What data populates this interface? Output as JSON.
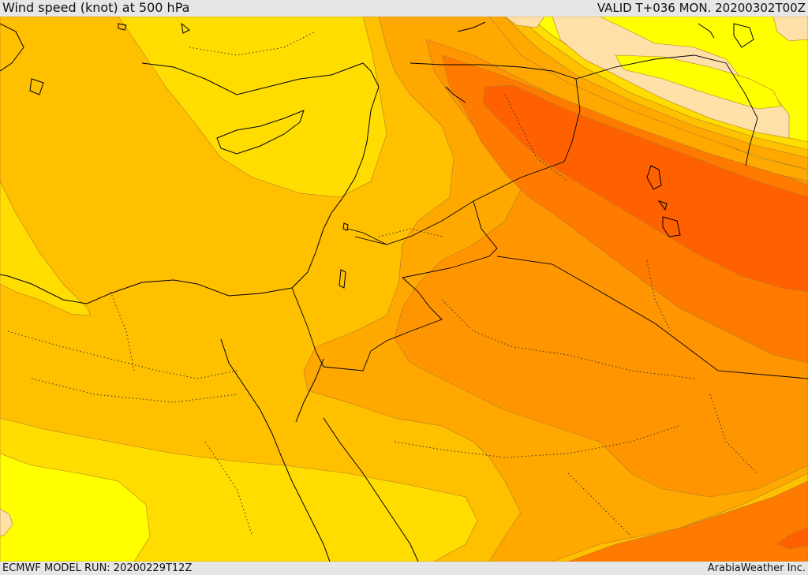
{
  "header": {
    "title": "Wind speed (knot) at 500 hPa",
    "valid": "VALID T+036 MON. 20200302T00Z"
  },
  "footer": {
    "model_run": "ECMWF MODEL RUN: 20200229T12Z",
    "credit": "ArabiaWeather Inc."
  },
  "colors": {
    "level_pale": "#ffe0a8",
    "level_yellow": "#ffff00",
    "level_gold": "#ffdd00",
    "level_amber": "#ffc000",
    "level_orange_light": "#ffa800",
    "level_orange": "#ff9500",
    "level_orange_dark": "#ff7b00",
    "level_red_orange": "#ff6000",
    "coastline": "#000000",
    "border": "#000000"
  }
}
